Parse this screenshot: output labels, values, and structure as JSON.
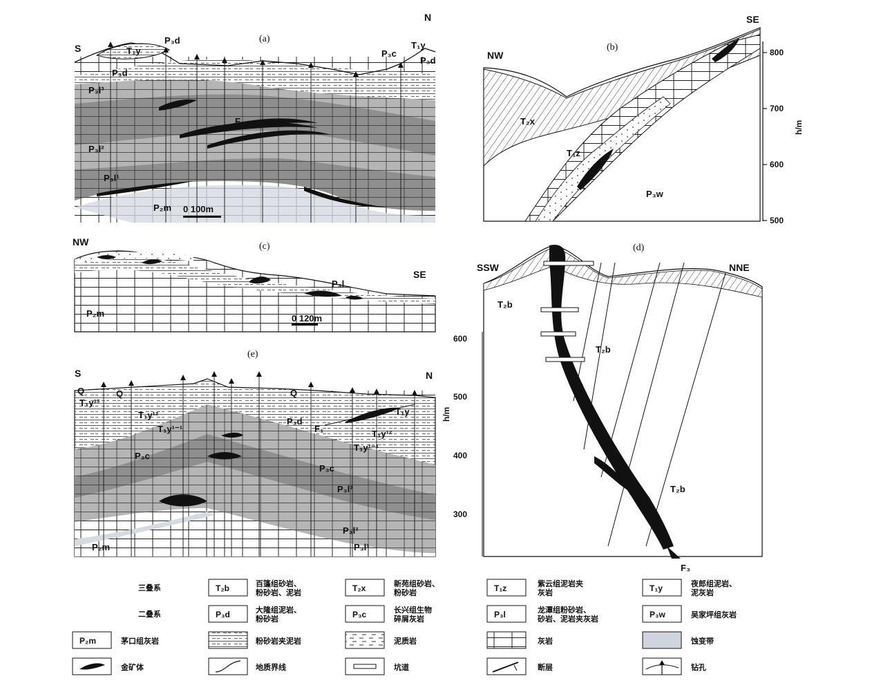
{
  "panels": {
    "a": {
      "title": "(a)",
      "orient_left": "S",
      "orient_right": "N",
      "labels": [
        "T₁y",
        "P₃d",
        "P₃d",
        "P₃c",
        "T₁y",
        "P₃d",
        "P₃l³",
        "P₃l²",
        "P₃l¹",
        "F",
        "P₂m"
      ],
      "scale": "0   100m"
    },
    "b": {
      "title": "(b)",
      "orient_left": "NW",
      "orient_right": "SE",
      "labels": [
        "T₂x",
        "T₁z",
        "P₃w"
      ],
      "axis_label": "h/m",
      "ticks": [
        "800",
        "700",
        "600",
        "500"
      ]
    },
    "c": {
      "title": "(c)",
      "orient_left": "NW",
      "orient_right": "SE",
      "labels": [
        "P₂m",
        "P₃l"
      ],
      "scale": "0   120m"
    },
    "d": {
      "title": "(d)",
      "orient_left": "SSW",
      "orient_right": "NNE",
      "labels": [
        "T₂b",
        "T₂b",
        "T₂b",
        "F₃"
      ],
      "axis_label": "h/m",
      "ticks": [
        "600",
        "500",
        "400",
        "300"
      ]
    },
    "e": {
      "title": "(e)",
      "orient_left": "S",
      "orient_right": "N",
      "labels": [
        "Q",
        "Q",
        "Q",
        "T₁y¹³",
        "T₁y¹²",
        "T₁y¹⁻¹",
        "P₃d",
        "F₁",
        "T₁y",
        "T₁y¹²",
        "P₃c",
        "T₁y¹⁻¹",
        "P₃c",
        "P₃l³",
        "P₃l²",
        "P₃l¹",
        "P₂m"
      ]
    }
  },
  "legend": {
    "group1": "三叠系",
    "group2": "二叠系",
    "items": [
      {
        "code": "T₂b",
        "text": "百篷组砂岩、\n粉砂岩、泥岩"
      },
      {
        "code": "T₂x",
        "text": "新苑组砂岩、\n粉砂岩"
      },
      {
        "code": "T₁z",
        "text": "紫云组泥岩夹\n灰岩"
      },
      {
        "code": "T₁y",
        "text": "夜郎组泥岩、\n泥灰岩"
      },
      {
        "code": "P₃d",
        "text": "大隆组泥岩、\n粉砂岩"
      },
      {
        "code": "P₃c",
        "text": "长兴组生物\n碎屑灰岩"
      },
      {
        "code": "P₃l",
        "text": "龙潭组粉砂岩、\n砂岩、泥岩夹灰岩"
      },
      {
        "code": "P₃w",
        "text": "吴家坪组灰岩"
      },
      {
        "code": "P₂m",
        "text": "茅口组灰岩"
      },
      {
        "code": "",
        "text": "粉砂岩夹泥岩"
      },
      {
        "code": "",
        "text": "泥质岩"
      },
      {
        "code": "",
        "text": "灰岩"
      },
      {
        "code": "",
        "text": "蚀变带"
      },
      {
        "code": "",
        "text": "金矿体"
      },
      {
        "code": "",
        "text": "地质界线"
      },
      {
        "code": "",
        "text": "坑道"
      },
      {
        "code": "",
        "text": "断层"
      },
      {
        "code": "",
        "text": "钻孔"
      }
    ]
  },
  "colors": {
    "dark_band": "#8f8f8f",
    "mid_band": "#b5b5b5",
    "light_band": "#d3d3d3",
    "alteration": "#cfd4de",
    "ore": "#111111"
  }
}
